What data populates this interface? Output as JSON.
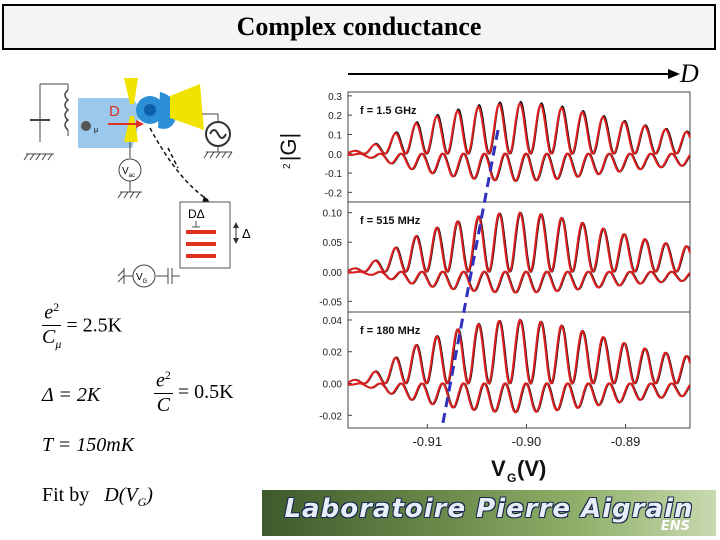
{
  "slide": {
    "title": "Complex conductance",
    "arrow_label": "D",
    "fit_label": "Fit by",
    "fit_expr": "D(V",
    "fit_expr_sub": "G",
    "fit_expr_end": ")"
  },
  "schematic": {
    "dot_label": "D",
    "vdc_label": "V",
    "vdc_sub": "ac",
    "vg_label": "V",
    "vg_sub": "G",
    "level_label": "DΔ",
    "delta_label": "Δ",
    "mu_label": "μ",
    "colors": {
      "lead": "#2b8fd6",
      "lead_light": "#9cc8ec",
      "gate": "#f2e200",
      "arrow": "#e03020",
      "levels": "#e03020"
    }
  },
  "formulas": {
    "f1_num": "e",
    "f1_num_sup": "2",
    "f1_den": "C",
    "f1_den_sub": "μ",
    "f1_rhs": "= 2.5K",
    "f2_lhs": "Δ = 2K",
    "f3_num": "e",
    "f3_num_sup": "2",
    "f3_den": "C",
    "f3_rhs": "= 0.5K",
    "f4": "T = 150mK"
  },
  "banner": {
    "text": "Laboratoire Pierre Aigrain",
    "sub": "ENS"
  },
  "chart_data": [
    {
      "type": "line",
      "panel": "top",
      "annotation": "f = 1.5 GHz",
      "ylabel": "|G|",
      "ylabel_sup": "2",
      "ylim": [
        -0.25,
        0.32
      ],
      "yticks": [
        0.3,
        0.2,
        0.1,
        0.0,
        -0.1,
        -0.2
      ],
      "ytick_labels": [
        "0.3",
        "0.2",
        "0.1",
        "0.0",
        "-0.1",
        "-0.2"
      ],
      "xlim": [
        -0.918,
        -0.8835
      ],
      "series": [
        {
          "color": "#111111",
          "amp": 0.27,
          "offset": 0.0
        },
        {
          "color": "#e02020",
          "amp": 0.26,
          "offset": 0.0
        },
        {
          "color": "#111111",
          "amp": -0.14,
          "offset": 0.0,
          "lower": true
        },
        {
          "color": "#e02020",
          "amp": -0.14,
          "offset": 0.0,
          "lower": true
        }
      ]
    },
    {
      "type": "line",
      "panel": "middle",
      "annotation": "f = 515 MHz",
      "ylim": [
        -0.068,
        0.118
      ],
      "yticks": [
        0.1,
        0.05,
        0.0,
        -0.05
      ],
      "ytick_labels": [
        "0.10",
        "0.05",
        "0.00",
        "-0.05"
      ],
      "xlim": [
        -0.918,
        -0.8835
      ],
      "series": [
        {
          "color": "#111111",
          "amp": 0.1,
          "offset": 0.0
        },
        {
          "color": "#e02020",
          "amp": 0.1,
          "offset": 0.0
        },
        {
          "color": "#111111",
          "amp": -0.035,
          "offset": 0.0,
          "lower": true
        },
        {
          "color": "#e02020",
          "amp": -0.035,
          "offset": 0.0,
          "lower": true
        }
      ]
    },
    {
      "type": "line",
      "panel": "bottom",
      "annotation": "f = 180 MHz",
      "xlabel": "V",
      "xlabel_sub": "G",
      "xlabel_unit": "(V)",
      "ylim": [
        -0.028,
        0.045
      ],
      "yticks": [
        0.04,
        0.02,
        0.0,
        -0.02
      ],
      "ytick_labels": [
        "0.04",
        "0.02",
        "0.00",
        "-0.02"
      ],
      "xlim": [
        -0.918,
        -0.8835
      ],
      "xticks": [
        -0.91,
        -0.9,
        -0.89
      ],
      "xtick_labels": [
        "-0.91",
        "-0.90",
        "-0.89"
      ],
      "series": [
        {
          "color": "#111111",
          "amp": 0.04,
          "offset": 0.0
        },
        {
          "color": "#e02020",
          "amp": 0.04,
          "offset": 0.0
        },
        {
          "color": "#111111",
          "amp": -0.018,
          "offset": 0.0,
          "lower": true
        },
        {
          "color": "#e02020",
          "amp": -0.018,
          "offset": 0.0,
          "lower": true
        }
      ]
    }
  ],
  "dashed_line": {
    "color": "#3030c0"
  }
}
